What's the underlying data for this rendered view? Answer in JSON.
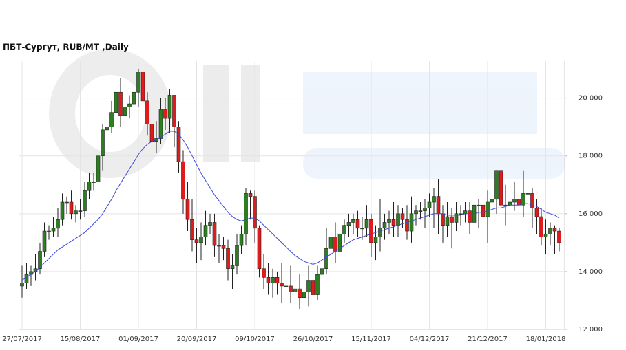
{
  "chart_data": {
    "type": "candlestick",
    "title": "ПБТ-Сургут,  RUB/MT ,Daily",
    "categories": [
      "27/07/2017",
      null,
      null,
      null,
      null,
      null,
      null,
      null,
      null,
      null,
      null,
      null,
      null,
      "15/08/2017",
      null,
      null,
      null,
      null,
      null,
      null,
      null,
      null,
      null,
      null,
      null,
      null,
      "01/09/2017",
      null,
      null,
      null,
      null,
      null,
      null,
      null,
      null,
      null,
      null,
      null,
      null,
      "20/09/2017",
      null,
      null,
      null,
      null,
      null,
      null,
      null,
      null,
      null,
      null,
      null,
      null,
      "09/10/2017",
      null,
      null,
      null,
      null,
      null,
      null,
      null,
      null,
      null,
      null,
      null,
      null,
      "26/10/2017",
      null,
      null,
      null,
      null,
      null,
      null,
      null,
      null,
      null,
      null,
      null,
      null,
      "15/11/2017",
      null,
      null,
      null,
      null,
      null,
      null,
      null,
      null,
      null,
      null,
      null,
      null,
      "04/12/2017",
      null,
      null,
      null,
      null,
      null,
      null,
      null,
      null,
      null,
      null,
      null,
      null,
      "21/12/2017",
      null,
      null,
      null,
      null,
      null,
      null,
      null,
      null,
      null,
      null,
      null,
      null,
      "18/01/2018",
      null,
      null,
      null
    ],
    "open": [
      13500,
      13600,
      13900,
      14000,
      14100,
      14700,
      15400,
      15400,
      15500,
      15800,
      16400,
      16400,
      16000,
      16100,
      16100,
      16800,
      17100,
      17100,
      18000,
      18900,
      19000,
      19500,
      20200,
      19400,
      19700,
      19800,
      20200,
      20900,
      19900,
      19100,
      18500,
      18600,
      19600,
      19300,
      20100,
      19000,
      17800,
      16500,
      15800,
      15100,
      15000,
      15200,
      15600,
      15700,
      14900,
      14900,
      14800,
      14100,
      14200,
      14900,
      15300,
      16700,
      16600,
      15500,
      14100,
      13800,
      13600,
      13800,
      13600,
      13500,
      13500,
      13300,
      13400,
      13100,
      13300,
      13700,
      13200,
      13900,
      14100,
      14800,
      15200,
      14700,
      15300,
      15600,
      15700,
      15800,
      15500,
      15500,
      15800,
      15000,
      15200,
      15500,
      15700,
      15800,
      15600,
      16000,
      15800,
      15400,
      16000,
      16100,
      16100,
      16200,
      16400,
      16600,
      16000,
      15600,
      15900,
      15700,
      16000,
      16000,
      16100,
      15700,
      16300,
      16300,
      15900,
      16400,
      16500,
      17500,
      16300,
      16300,
      16400,
      16500,
      16300,
      16700,
      16700,
      16200,
      15900,
      15200,
      15300,
      15500,
      15400
    ],
    "high": [
      14200,
      14300,
      14200,
      14600,
      15000,
      15700,
      15600,
      15900,
      16200,
      16700,
      16600,
      16800,
      16300,
      16500,
      17100,
      17400,
      17400,
      18300,
      19100,
      19300,
      19900,
      20500,
      20700,
      20200,
      20100,
      20700,
      21000,
      21000,
      20200,
      19600,
      19200,
      20000,
      20000,
      20300,
      20100,
      19200,
      18200,
      17100,
      16500,
      15500,
      15700,
      16100,
      16000,
      16000,
      15300,
      15200,
      15100,
      14600,
      15300,
      15600,
      16900,
      16800,
      16800,
      15600,
      14600,
      14300,
      14100,
      14000,
      14300,
      14000,
      14200,
      13800,
      13900,
      13800,
      14200,
      14000,
      14200,
      14500,
      15500,
      15600,
      15700,
      15600,
      15800,
      16000,
      16000,
      16100,
      15900,
      16300,
      16000,
      15600,
      16500,
      16000,
      16100,
      16400,
      16300,
      16200,
      16300,
      16600,
      16300,
      16400,
      16500,
      16700,
      16900,
      17200,
      16300,
      16400,
      16200,
      16400,
      16300,
      16400,
      16400,
      16700,
      16500,
      16700,
      16800,
      16800,
      17500,
      17600,
      17000,
      16700,
      17100,
      16800,
      17500,
      16900,
      16900,
      16500,
      16200,
      15800,
      15700,
      15600,
      15500
    ],
    "low": [
      13100,
      13400,
      13500,
      13700,
      13900,
      14500,
      15100,
      15200,
      15200,
      15600,
      16000,
      15800,
      15700,
      15800,
      15900,
      16500,
      16800,
      16800,
      17500,
      18300,
      18800,
      19000,
      19000,
      18900,
      19300,
      19500,
      19700,
      19300,
      18700,
      18000,
      18100,
      18400,
      18900,
      18800,
      18300,
      17400,
      16000,
      15400,
      14700,
      14300,
      14400,
      14900,
      15300,
      14500,
      14300,
      14400,
      13700,
      13400,
      13900,
      14600,
      14900,
      15800,
      15000,
      13800,
      13400,
      13200,
      13100,
      13200,
      12900,
      12800,
      12900,
      12700,
      12700,
      12500,
      12800,
      12600,
      13000,
      13600,
      13900,
      14500,
      14300,
      14400,
      15000,
      15200,
      15300,
      15200,
      15100,
      15200,
      14500,
      14400,
      14700,
      15100,
      15300,
      15200,
      15200,
      15500,
      15100,
      15000,
      15600,
      15800,
      15500,
      15900,
      15500,
      15300,
      15000,
      15200,
      14800,
      15400,
      15600,
      15700,
      15300,
      15400,
      15500,
      15300,
      15000,
      15900,
      16000,
      15800,
      15600,
      15400,
      16100,
      15700,
      15900,
      16200,
      15500,
      15300,
      14900,
      14600,
      14900,
      14600,
      14700
    ],
    "close": [
      13600,
      13900,
      14000,
      14100,
      14700,
      15400,
      15400,
      15500,
      15800,
      16400,
      16400,
      16000,
      16100,
      16100,
      16800,
      17100,
      17100,
      18000,
      18900,
      19000,
      19500,
      20200,
      19400,
      19700,
      19800,
      20200,
      20900,
      19900,
      19100,
      18500,
      18600,
      19600,
      19300,
      20100,
      19000,
      17800,
      16500,
      15800,
      15100,
      15000,
      15200,
      15600,
      15700,
      14900,
      14900,
      14800,
      14100,
      14200,
      14900,
      15300,
      16700,
      16600,
      15500,
      14100,
      13800,
      13600,
      13800,
      13600,
      13500,
      13500,
      13300,
      13400,
      13100,
      13300,
      13700,
      13200,
      13900,
      14100,
      14800,
      15200,
      14700,
      15300,
      15600,
      15700,
      15800,
      15500,
      15500,
      15800,
      15000,
      15200,
      15500,
      15700,
      15800,
      15600,
      16000,
      15800,
      15400,
      16000,
      16100,
      16100,
      16200,
      16400,
      16600,
      16000,
      15600,
      15900,
      15700,
      16000,
      16000,
      16100,
      15700,
      16300,
      16300,
      15900,
      16400,
      16500,
      17500,
      16300,
      16300,
      16400,
      16500,
      16300,
      16700,
      16700,
      16200,
      15900,
      15200,
      15300,
      15500,
      15400,
      15000
    ],
    "moving_average": {
      "color": "#3a46d6",
      "values": [
        13700,
        13800,
        13900,
        14000,
        14150,
        14300,
        14450,
        14600,
        14750,
        14850,
        14950,
        15050,
        15150,
        15250,
        15350,
        15500,
        15650,
        15800,
        16000,
        16250,
        16500,
        16800,
        17050,
        17300,
        17550,
        17800,
        18050,
        18250,
        18400,
        18500,
        18550,
        18650,
        18750,
        18850,
        18850,
        18750,
        18550,
        18300,
        18000,
        17700,
        17400,
        17150,
        16900,
        16650,
        16450,
        16250,
        16050,
        15900,
        15800,
        15750,
        15800,
        15850,
        15850,
        15750,
        15600,
        15450,
        15300,
        15150,
        15000,
        14850,
        14700,
        14550,
        14450,
        14350,
        14300,
        14250,
        14300,
        14400,
        14500,
        14600,
        14700,
        14800,
        14900,
        15000,
        15100,
        15150,
        15200,
        15250,
        15300,
        15350,
        15400,
        15450,
        15500,
        15550,
        15600,
        15650,
        15700,
        15750,
        15800,
        15850,
        15900,
        15950,
        16000,
        16000,
        16000,
        15950,
        15950,
        15950,
        15950,
        16000,
        16000,
        16000,
        16050,
        16050,
        16100,
        16150,
        16200,
        16200,
        16250,
        16300,
        16300,
        16300,
        16350,
        16350,
        16300,
        16250,
        16150,
        16050,
        16000,
        15950,
        15850
      ]
    },
    "up_color": "#2f7d22",
    "down_color": "#e01b1b",
    "ylim": [
      12000,
      21300
    ],
    "yticks": [
      {
        "value": 12000,
        "label": "12 000"
      },
      {
        "value": 14000,
        "label": "14 000"
      },
      {
        "value": 16000,
        "label": "16 000"
      },
      {
        "value": 18000,
        "label": "18 000"
      },
      {
        "value": 20000,
        "label": "20 000"
      }
    ],
    "grid": true,
    "y_axis_side": "right"
  }
}
